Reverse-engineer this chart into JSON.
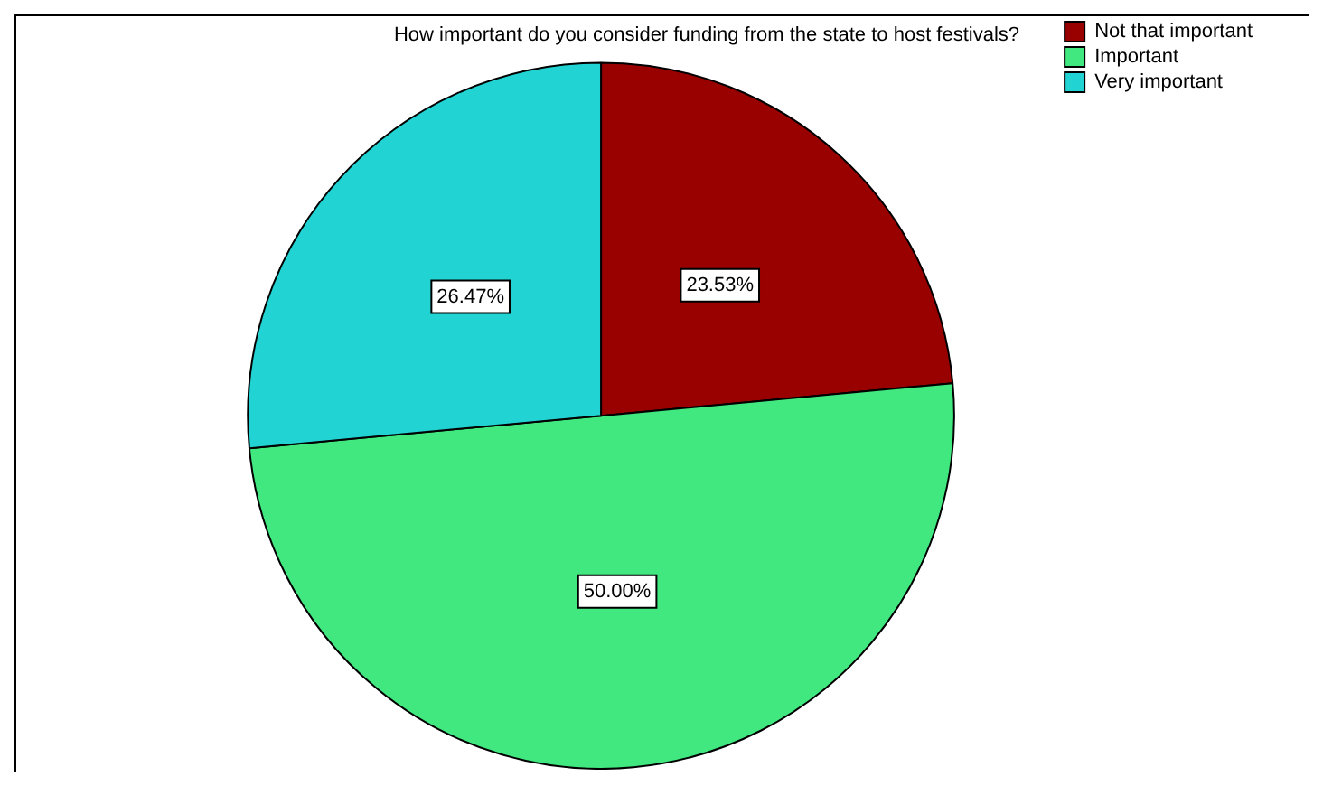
{
  "chart_data": {
    "type": "pie",
    "title": "How important do you consider funding from the state to host festivals?",
    "categories": [
      "Not that important",
      "Important",
      "Very important"
    ],
    "values": [
      23.53,
      50.0,
      26.47
    ],
    "colors": [
      "#990000",
      "#40e87f",
      "#22d3d3"
    ],
    "value_labels": [
      "23.53%",
      "50.00%",
      "26.47%"
    ],
    "legend": "top right"
  }
}
